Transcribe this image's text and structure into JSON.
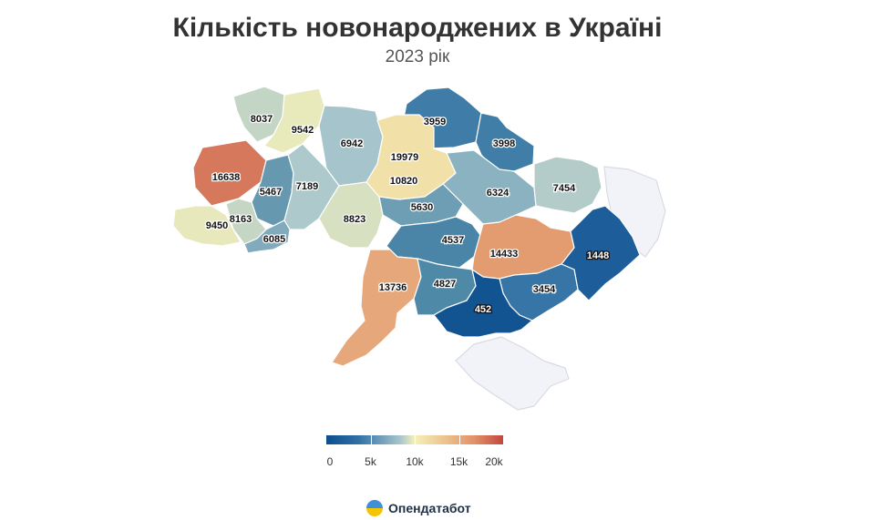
{
  "title": "Кількість новонароджених в Україні",
  "subtitle": "2023 рік",
  "colors": {
    "scale": [
      "#0d4f8e",
      "#2e6fa6",
      "#a8c6cc",
      "#f5f0b8",
      "#ecc08b",
      "#e09068",
      "#c2473f"
    ],
    "no_data": "#f2f3f8"
  },
  "map_data": {
    "type": "choropleth",
    "unit": "births",
    "regions": [
      {
        "value": 8037
      },
      {
        "value": 9542
      },
      {
        "value": 6942
      },
      {
        "value": 3959
      },
      {
        "value": 3998
      },
      {
        "value": 16638
      },
      {
        "value": 5467
      },
      {
        "value": 7189
      },
      {
        "value": 19979
      },
      {
        "value": 10820
      },
      {
        "value": 6324
      },
      {
        "value": 7454
      },
      {
        "value": 9450
      },
      {
        "value": 8163
      },
      {
        "value": 6085
      },
      {
        "value": 8823
      },
      {
        "value": 5630
      },
      {
        "value": 4537
      },
      {
        "value": 14433
      },
      {
        "value": 1448
      },
      {
        "value": 13736
      },
      {
        "value": 4827
      },
      {
        "value": 3454
      },
      {
        "value": 452
      }
    ]
  },
  "legend": {
    "min": 0,
    "max": 20000,
    "ticks": [
      {
        "value": 0,
        "label": "0"
      },
      {
        "value": 5000,
        "label": "5k"
      },
      {
        "value": 10000,
        "label": "10k"
      },
      {
        "value": 15000,
        "label": "15k"
      },
      {
        "value": 20000,
        "label": "20k"
      }
    ]
  },
  "brand": {
    "name": "Опендатабот",
    "icon": "opendatabot-logo-icon"
  }
}
